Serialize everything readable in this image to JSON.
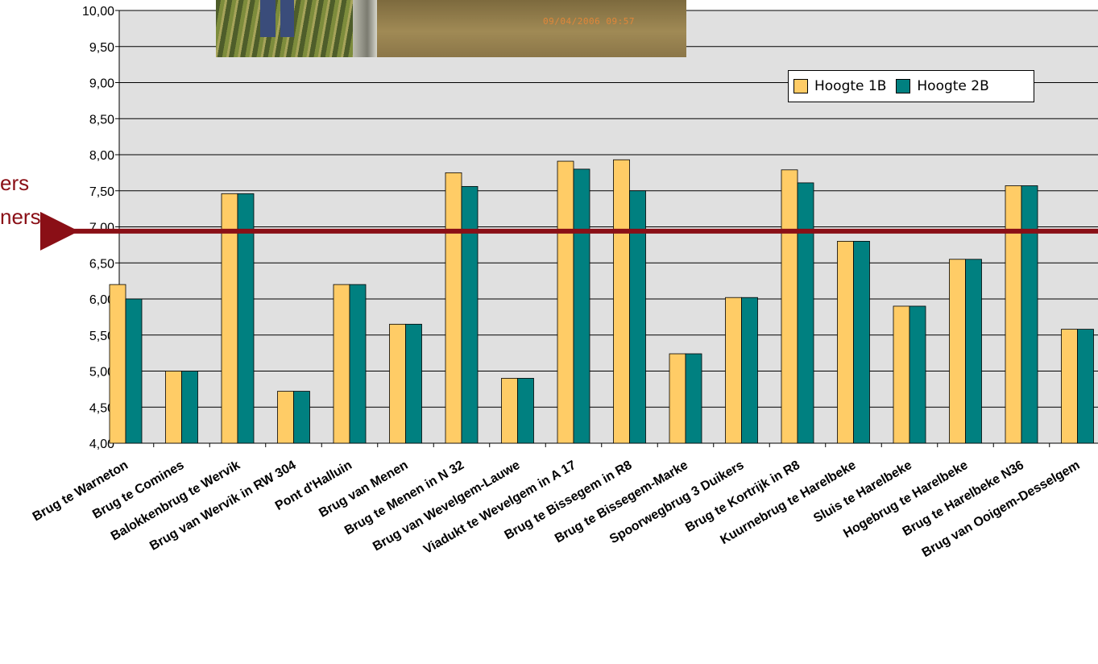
{
  "chart_data": {
    "type": "bar",
    "categories": [
      "Brug te Warneton",
      "Brug te Comines",
      "Balokkenbrug te Wervik",
      "Brug van Wervik in RW 304",
      "Pont d'Halluin",
      "Brug van Menen",
      "Brug te Menen in N 32",
      "Brug van Wevelgem-Lauwe",
      "Viadukt te Wevelgem in A 17",
      "Brug te Bissegem in R8",
      "Brug te Bissegem-Marke",
      "Spoorwegbrug 3 Duikers",
      "Brug te Kortrijk in R8",
      "Kuurnebrug te Harelbeke",
      "Sluis te Harelbeke",
      "Hogebrug te Harelbeke",
      "Brug te Harelbeke N36",
      "Brug van Ooigem-Desselgem"
    ],
    "series": [
      {
        "name": "Hoogte 1B",
        "color": "#ffcc66",
        "values": [
          6.2,
          5.0,
          7.46,
          4.72,
          6.2,
          5.65,
          7.75,
          4.9,
          7.91,
          7.93,
          5.24,
          6.02,
          7.79,
          6.8,
          5.9,
          6.55,
          7.57,
          5.58
        ]
      },
      {
        "name": "Hoogte 2B",
        "color": "#008080",
        "values": [
          6.0,
          5.0,
          7.46,
          4.72,
          6.2,
          5.65,
          7.56,
          4.9,
          7.8,
          7.5,
          5.24,
          6.02,
          7.61,
          6.8,
          5.9,
          6.55,
          7.57,
          5.58
        ]
      }
    ],
    "yticks": [
      "4,00",
      "4,50",
      "5,00",
      "5,50",
      "6,00",
      "6,50",
      "7,00",
      "7,50",
      "8,00",
      "8,50",
      "9,00",
      "9,50",
      "10,00"
    ],
    "ylim": [
      4.0,
      10.0
    ],
    "reference_line": {
      "value": 6.94,
      "color": "#8a0f16"
    },
    "grid": true,
    "plot_background": "#e0e0e0",
    "legend_position": "top-right",
    "title": "",
    "xlabel": "",
    "ylabel": ""
  },
  "side_labels": {
    "line1": "ers",
    "line2": "ners"
  },
  "photo": {
    "timestamp": "09/04/2006 09:57"
  }
}
